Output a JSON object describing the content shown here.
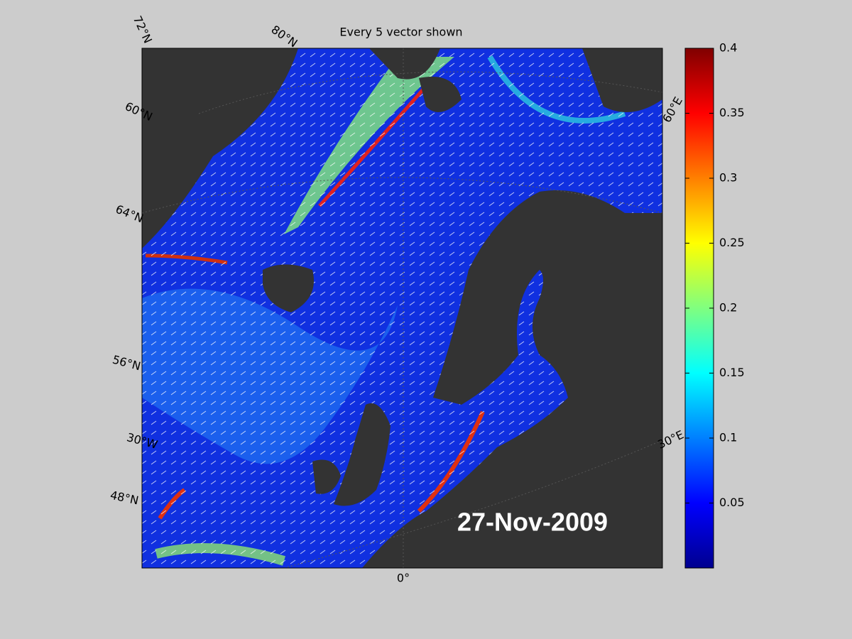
{
  "map": {
    "title": "Every 5 vector shown",
    "date_label": "27-Nov-2009",
    "graticule_labels": [
      "72°N",
      "80°N",
      "60°N",
      "64°N",
      "56°N",
      "48°N",
      "30°W",
      "0°",
      "30°E",
      "60°E"
    ]
  },
  "colorbar": {
    "lim": [
      0,
      0.4
    ],
    "ticks": [
      0.05,
      0.1,
      0.15,
      0.2,
      0.25,
      0.3,
      0.35,
      0.4
    ]
  }
}
